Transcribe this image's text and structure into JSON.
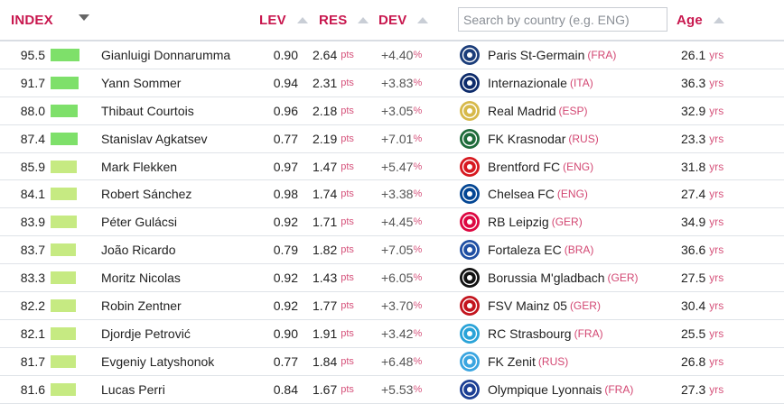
{
  "header": {
    "index_label": "INDEX",
    "lev_label": "LEV",
    "res_label": "RES",
    "dev_label": "DEV",
    "search_placeholder": "Search by country (e.g. ENG)",
    "age_label": "Age"
  },
  "units": {
    "res": "pts",
    "dev": "%",
    "age": "yrs"
  },
  "colors": {
    "accent": "#c8174e",
    "bar_high": "#7ee06a",
    "bar_low": "#c6ea82"
  },
  "rows": [
    {
      "index": "95.5",
      "bar_level": 0.955,
      "name": "Gianluigi Donnarumma",
      "lev": "0.90",
      "res": "2.64",
      "dev": "+4.40",
      "club": "Paris St-Germain",
      "country": "(FRA)",
      "age": "26.1",
      "badge_icon": "psg-crest-icon",
      "badge_color": "#1b3d7a"
    },
    {
      "index": "91.7",
      "bar_level": 0.917,
      "name": "Yann Sommer",
      "lev": "0.94",
      "res": "2.31",
      "dev": "+3.83",
      "club": "Internazionale",
      "country": "(ITA)",
      "age": "36.3",
      "badge_icon": "inter-crest-icon",
      "badge_color": "#0d2b6b"
    },
    {
      "index": "88.0",
      "bar_level": 0.88,
      "name": "Thibaut Courtois",
      "lev": "0.96",
      "res": "2.18",
      "dev": "+3.05",
      "club": "Real Madrid",
      "country": "(ESP)",
      "age": "32.9",
      "badge_icon": "real-madrid-crest-icon",
      "badge_color": "#d7b94a"
    },
    {
      "index": "87.4",
      "bar_level": 0.874,
      "name": "Stanislav Agkatsev",
      "lev": "0.77",
      "res": "2.19",
      "dev": "+7.01",
      "club": "FK Krasnodar",
      "country": "(RUS)",
      "age": "23.3",
      "badge_icon": "krasnodar-crest-icon",
      "badge_color": "#1e6b3a"
    },
    {
      "index": "85.9",
      "bar_level": 0.859,
      "name": "Mark Flekken",
      "lev": "0.97",
      "res": "1.47",
      "dev": "+5.47",
      "club": "Brentford FC",
      "country": "(ENG)",
      "age": "31.8",
      "badge_icon": "brentford-crest-icon",
      "badge_color": "#d71920"
    },
    {
      "index": "84.1",
      "bar_level": 0.841,
      "name": "Robert Sánchez",
      "lev": "0.98",
      "res": "1.74",
      "dev": "+3.38",
      "club": "Chelsea FC",
      "country": "(ENG)",
      "age": "27.4",
      "badge_icon": "chelsea-crest-icon",
      "badge_color": "#034694"
    },
    {
      "index": "83.9",
      "bar_level": 0.839,
      "name": "Péter Gulácsi",
      "lev": "0.92",
      "res": "1.71",
      "dev": "+4.45",
      "club": "RB Leipzig",
      "country": "(GER)",
      "age": "34.9",
      "badge_icon": "leipzig-crest-icon",
      "badge_color": "#dd0741"
    },
    {
      "index": "83.7",
      "bar_level": 0.837,
      "name": "João Ricardo",
      "lev": "0.79",
      "res": "1.82",
      "dev": "+7.05",
      "club": "Fortaleza EC",
      "country": "(BRA)",
      "age": "36.6",
      "badge_icon": "fortaleza-crest-icon",
      "badge_color": "#1f4fa3"
    },
    {
      "index": "83.3",
      "bar_level": 0.833,
      "name": "Moritz Nicolas",
      "lev": "0.92",
      "res": "1.43",
      "dev": "+6.05",
      "club": "Borussia M'gladbach",
      "country": "(GER)",
      "age": "27.5",
      "badge_icon": "gladbach-crest-icon",
      "badge_color": "#111111"
    },
    {
      "index": "82.2",
      "bar_level": 0.822,
      "name": "Robin Zentner",
      "lev": "0.92",
      "res": "1.77",
      "dev": "+3.70",
      "club": "FSV Mainz 05",
      "country": "(GER)",
      "age": "30.4",
      "badge_icon": "mainz-crest-icon",
      "badge_color": "#c3141e"
    },
    {
      "index": "82.1",
      "bar_level": 0.821,
      "name": "Djordje Petrović",
      "lev": "0.90",
      "res": "1.91",
      "dev": "+3.42",
      "club": "RC Strasbourg",
      "country": "(FRA)",
      "age": "25.5",
      "badge_icon": "strasbourg-crest-icon",
      "badge_color": "#2aa3d8"
    },
    {
      "index": "81.7",
      "bar_level": 0.817,
      "name": "Evgeniy Latyshonok",
      "lev": "0.77",
      "res": "1.84",
      "dev": "+6.48",
      "club": "FK Zenit",
      "country": "(RUS)",
      "age": "26.8",
      "badge_icon": "zenit-crest-icon",
      "badge_color": "#3aa5e0"
    },
    {
      "index": "81.6",
      "bar_level": 0.816,
      "name": "Lucas Perri",
      "lev": "0.84",
      "res": "1.67",
      "dev": "+5.53",
      "club": "Olympique Lyonnais",
      "country": "(FRA)",
      "age": "27.3",
      "badge_icon": "lyon-crest-icon",
      "badge_color": "#1c3f94"
    }
  ]
}
